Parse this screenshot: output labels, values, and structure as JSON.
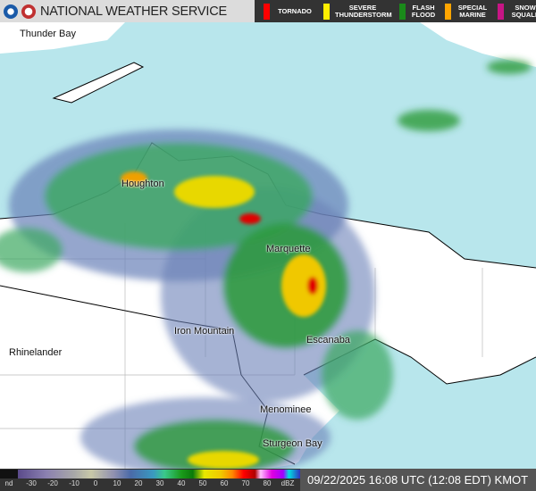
{
  "header": {
    "title": "NATIONAL WEATHER SERVICE",
    "warnings": [
      {
        "label": "TORNADO",
        "color": "#ff0000"
      },
      {
        "label": "SEVERE THUNDERSTORM",
        "color": "#ffee00"
      },
      {
        "label": "FLASH FLOOD",
        "color": "#1a8a1a"
      },
      {
        "label": "SPECIAL MARINE",
        "color": "#ffa500"
      },
      {
        "label": "SNOW SQUALL",
        "color": "#c71585"
      }
    ]
  },
  "cities": {
    "thunder_bay": "Thunder Bay",
    "houghton": "Houghton",
    "marquette": "Marquette",
    "iron_mountain": "Iron Mountain",
    "escanaba": "Escanaba",
    "rhinelander": "Rhinelander",
    "menominee": "Menominee",
    "sturgeon_bay": "Sturgeon Bay"
  },
  "legend": {
    "ticks": [
      "nd",
      "-30",
      "-20",
      "-10",
      "0",
      "10",
      "20",
      "30",
      "40",
      "50",
      "60",
      "70",
      "80",
      "dBZ"
    ]
  },
  "timestamp": "09/22/2025 16:08 UTC (12:08 EDT) KMOT",
  "colors": {
    "lake": "#b8e6ec",
    "land": "#ffffff"
  }
}
